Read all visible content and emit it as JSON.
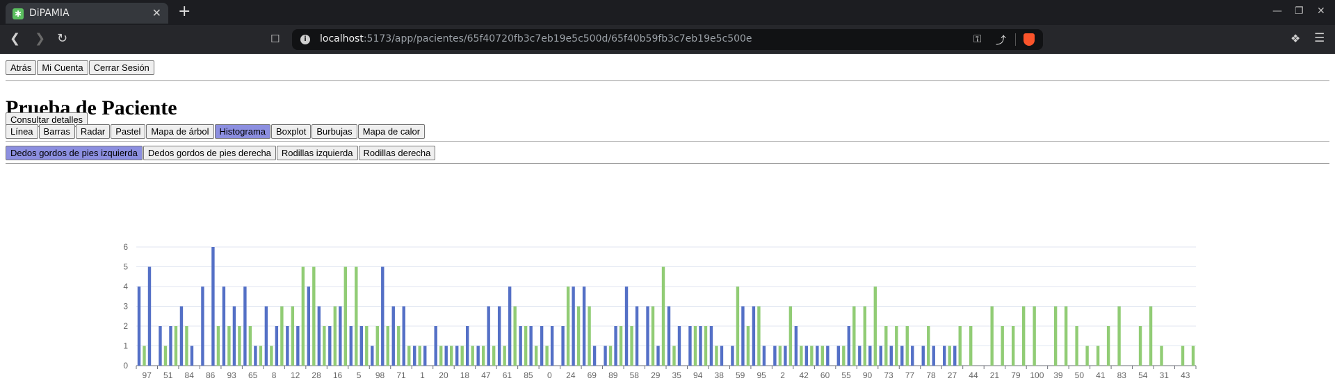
{
  "browser": {
    "tab": {
      "title": "DiPAMIA"
    },
    "url": {
      "host": "localhost",
      "path": ":5173/app/pacientes/65f40720fb3c7eb19e5c500d/65f40b59fb3c7eb19e5c500e"
    }
  },
  "nav": {
    "back_label": "Atrás",
    "account_label": "Mi Cuenta",
    "logout_label": "Cerrar Sesión"
  },
  "page_title": "Prueba de Paciente",
  "details_button": "Consultar detalles",
  "chart_types": [
    {
      "label": "Línea",
      "active": false
    },
    {
      "label": "Barras",
      "active": false
    },
    {
      "label": "Radar",
      "active": false
    },
    {
      "label": "Pastel",
      "active": false
    },
    {
      "label": "Mapa de árbol",
      "active": false
    },
    {
      "label": "Histograma",
      "active": true
    },
    {
      "label": "Boxplot",
      "active": false
    },
    {
      "label": "Burbujas",
      "active": false
    },
    {
      "label": "Mapa de calor",
      "active": false
    }
  ],
  "body_parts": [
    {
      "label": "Dedos gordos de pies izquierda",
      "active": true
    },
    {
      "label": "Dedos gordos de pies derecha",
      "active": false
    },
    {
      "label": "Rodillas izquierda",
      "active": false
    },
    {
      "label": "Rodillas derecha",
      "active": false
    }
  ],
  "colors": {
    "active_button": "#8c8fe0",
    "series_blue": "#5470c6",
    "series_green": "#91cc75"
  },
  "chart_data": {
    "type": "bar",
    "ylim": [
      0,
      6
    ],
    "yticks": [
      0,
      1,
      2,
      3,
      4,
      5,
      6
    ],
    "grid": true,
    "categories": [
      "97",
      "51",
      "84",
      "86",
      "93",
      "65",
      "8",
      "12",
      "28",
      "16",
      "5",
      "98",
      "71",
      "1",
      "20",
      "18",
      "47",
      "61",
      "85",
      "0",
      "24",
      "69",
      "89",
      "58",
      "29",
      "35",
      "94",
      "38",
      "59",
      "95",
      "2",
      "42",
      "60",
      "55",
      "90",
      "73",
      "77",
      "78",
      "27",
      "44",
      "21",
      "79",
      "100",
      "39",
      "50",
      "41",
      "83",
      "54",
      "31",
      "43"
    ],
    "series": [
      {
        "color": "#5470c6",
        "values": [
          4,
          2,
          3,
          4,
          4,
          4,
          3,
          2,
          4,
          2,
          2,
          1,
          3,
          1,
          2,
          1,
          1,
          3,
          2,
          2,
          2,
          4,
          1,
          4,
          3,
          3,
          2,
          2,
          1,
          3,
          1,
          2,
          1,
          1,
          1,
          1,
          1,
          1,
          1,
          0,
          0,
          0,
          0,
          0,
          0,
          0,
          0,
          0,
          0,
          0
        ]
      },
      {
        "color": "#91cc75",
        "values": [
          1,
          1,
          2,
          0,
          2,
          2,
          1,
          3,
          5,
          3,
          5,
          2,
          2,
          1,
          1,
          1,
          1,
          1,
          2,
          1,
          4,
          3,
          1,
          2,
          3,
          1,
          2,
          1,
          4,
          3,
          1,
          1,
          1,
          1,
          3,
          2,
          2,
          2,
          1,
          2,
          3,
          2,
          3,
          3,
          2,
          1,
          3,
          2,
          1,
          1
        ]
      },
      {
        "color": "#5470c6",
        "values": [
          5,
          2,
          1,
          6,
          3,
          1,
          2,
          2,
          3,
          3,
          2,
          5,
          3,
          1,
          1,
          2,
          3,
          4,
          2,
          2,
          4,
          1,
          2,
          3,
          1,
          2,
          2,
          1,
          3,
          1,
          1,
          1,
          1,
          2,
          1,
          1,
          1,
          1,
          1,
          0,
          0,
          0,
          0,
          0,
          0,
          0,
          0,
          0,
          0,
          0
        ]
      },
      {
        "color": "#91cc75",
        "values": [
          0,
          2,
          0,
          2,
          2,
          1,
          3,
          5,
          2,
          5,
          2,
          2,
          1,
          0,
          1,
          1,
          1,
          3,
          1,
          0,
          3,
          0,
          2,
          0,
          5,
          0,
          2,
          0,
          2,
          0,
          3,
          1,
          0,
          3,
          4,
          2,
          0,
          0,
          2,
          0,
          2,
          3,
          0,
          3,
          1,
          2,
          0,
          3,
          0,
          1
        ]
      }
    ]
  }
}
